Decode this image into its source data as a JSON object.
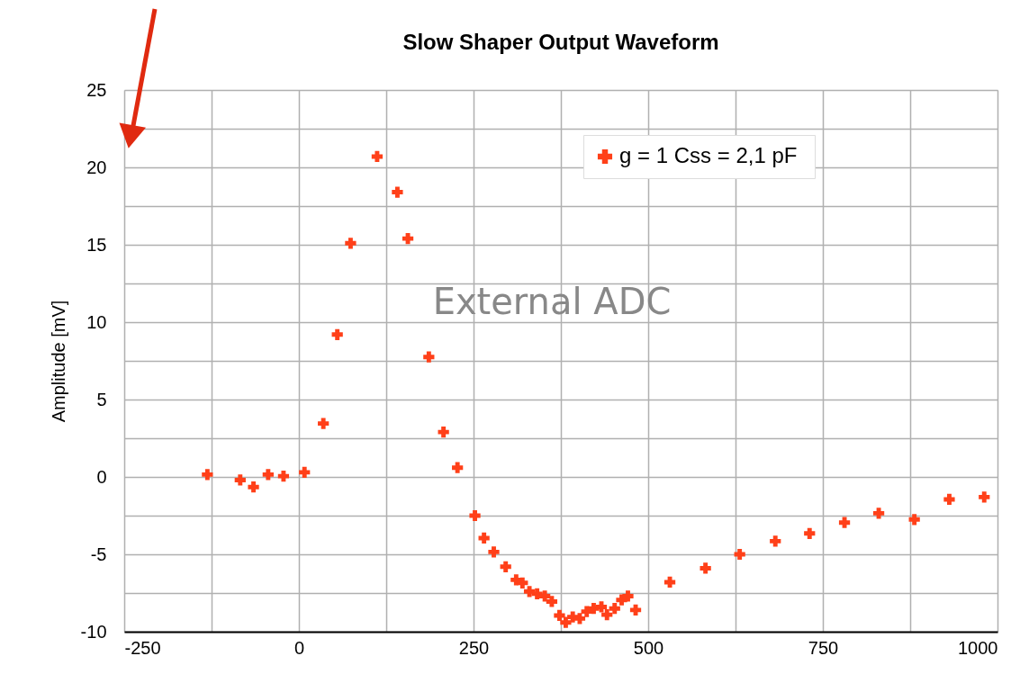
{
  "chart_data": {
    "type": "scatter",
    "title": "Slow Shaper Output Waveform",
    "ylabel": "Amplitude [mV]",
    "annotations": [
      "External ADC"
    ],
    "series": [
      {
        "name": "g = 1  Css = 2,1 pF",
        "color": "#ff4019",
        "x": [
          -131,
          -84,
          -65,
          -44,
          -22,
          8,
          35,
          55,
          74,
          112,
          141,
          156,
          186,
          207,
          227,
          252,
          265,
          279,
          296,
          311,
          320,
          330,
          341,
          352,
          362,
          373,
          382,
          392,
          402,
          412,
          422,
          433,
          441,
          452,
          462,
          471,
          482,
          531,
          582,
          631,
          682,
          731,
          781,
          830,
          881,
          931,
          981
        ],
        "values": [
          0.15,
          -0.2,
          -0.65,
          0.15,
          0.05,
          0.3,
          3.45,
          9.2,
          15.1,
          20.7,
          18.4,
          15.4,
          7.75,
          2.9,
          0.6,
          -2.5,
          -3.95,
          -4.85,
          -5.8,
          -6.65,
          -6.85,
          -7.4,
          -7.55,
          -7.7,
          -8.05,
          -8.95,
          -9.4,
          -9.05,
          -9.15,
          -8.7,
          -8.5,
          -8.4,
          -8.9,
          -8.5,
          -7.95,
          -7.7,
          -8.6,
          -6.8,
          -5.9,
          -5.0,
          -4.15,
          -3.65,
          -2.95,
          -2.35,
          -2.75,
          -1.45,
          -1.3
        ]
      }
    ],
    "xlim": [
      -250,
      1000
    ],
    "xticks": [
      -250,
      {
        "value": -125,
        "label": null
      },
      0,
      {
        "value": 125,
        "label": null
      },
      250,
      {
        "value": 375,
        "label": null
      },
      500,
      {
        "value": 625,
        "label": null
      },
      750,
      {
        "value": 875,
        "label": null
      },
      1000
    ],
    "ylim": [
      -10,
      25
    ],
    "yticks": [
      -10,
      {
        "value": -7.5,
        "label": null
      },
      -5,
      {
        "value": -2.5,
        "label": null
      },
      0,
      {
        "value": 2.5,
        "label": null
      },
      5,
      {
        "value": 7.5,
        "label": null
      },
      10,
      {
        "value": 12.5,
        "label": null
      },
      15,
      {
        "value": 17.5,
        "label": null
      },
      20,
      {
        "value": 22.5,
        "label": null
      },
      25
    ],
    "grid": true,
    "legend": "top right",
    "marker": "cross"
  }
}
